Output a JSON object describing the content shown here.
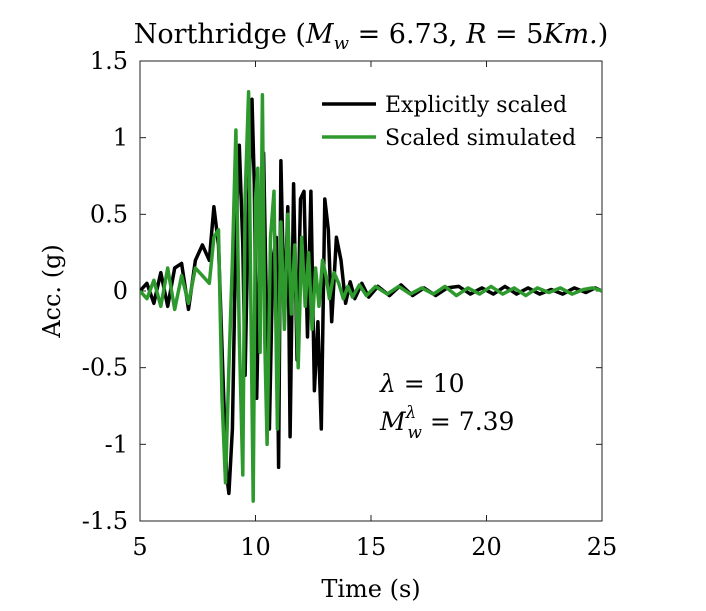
{
  "chart_data": {
    "type": "line",
    "title": "Northridge (M_w = 6.73, R = 5Km.)",
    "title_parts": {
      "prefix": "Northridge (",
      "mw_symbol": "M",
      "mw_sub": "w",
      "mw_value": " = 6.73, ",
      "r_symbol": "R",
      "r_value": " = 5",
      "km": "Km.",
      "suffix": ")"
    },
    "xlabel": "Time (s)",
    "ylabel": "Acc. (g)",
    "xlim": [
      5,
      25
    ],
    "ylim": [
      -1.5,
      1.5
    ],
    "xticks": [
      5,
      10,
      15,
      20,
      25
    ],
    "yticks": [
      1.5,
      1,
      0.5,
      0,
      -0.5,
      -1,
      -1.5
    ],
    "ytick_labels": [
      "1.5",
      "1",
      "0.5",
      "0",
      "-0.5",
      "-1",
      "-1.5"
    ],
    "legend_position": "top-right",
    "annotation": {
      "lambda_line": "λ = 10",
      "lambda_symbol": "λ",
      "lambda_value": " = 10",
      "mw_symbol": "M",
      "mw_sub": "w",
      "mw_sup": "λ",
      "mw_value": " = 7.39"
    },
    "series": [
      {
        "name": "Explicitly scaled",
        "color": "#000000",
        "x": [
          5.0,
          5.3,
          5.6,
          5.9,
          6.2,
          6.5,
          6.8,
          7.1,
          7.4,
          7.7,
          8.0,
          8.2,
          8.4,
          8.6,
          8.75,
          8.85,
          9.0,
          9.15,
          9.3,
          9.45,
          9.55,
          9.7,
          9.85,
          9.95,
          10.05,
          10.2,
          10.35,
          10.5,
          10.6,
          10.75,
          10.9,
          11.0,
          11.1,
          11.25,
          11.4,
          11.5,
          11.65,
          11.8,
          11.95,
          12.1,
          12.25,
          12.4,
          12.55,
          12.7,
          12.85,
          13.0,
          13.15,
          13.3,
          13.5,
          13.7,
          13.9,
          14.1,
          14.3,
          14.6,
          14.9,
          15.3,
          15.8,
          16.3,
          16.8,
          17.3,
          17.8,
          18.3,
          18.8,
          19.3,
          19.8,
          20.3,
          20.8,
          21.3,
          21.8,
          22.3,
          22.8,
          23.3,
          23.8,
          24.3,
          24.7,
          25.0
        ],
        "y": [
          0.0,
          0.05,
          -0.08,
          0.12,
          -0.1,
          0.15,
          0.18,
          -0.12,
          0.2,
          0.3,
          0.2,
          0.55,
          0.3,
          -0.6,
          -1.2,
          -1.32,
          -0.9,
          0.4,
          0.95,
          0.3,
          -0.55,
          0.6,
          1.25,
          0.7,
          -0.7,
          0.45,
          0.9,
          -0.35,
          -0.9,
          0.2,
          0.35,
          -1.15,
          0.85,
          -0.2,
          0.55,
          -0.95,
          0.7,
          -0.45,
          0.6,
          0.65,
          -0.3,
          0.65,
          -0.65,
          -0.2,
          -0.9,
          0.6,
          0.4,
          -0.2,
          0.35,
          0.2,
          -0.08,
          0.06,
          -0.05,
          0.05,
          -0.04,
          0.03,
          -0.03,
          0.04,
          -0.03,
          0.02,
          -0.03,
          0.02,
          0.03,
          -0.02,
          0.02,
          -0.02,
          0.03,
          -0.02,
          0.02,
          -0.02,
          0.01,
          -0.02,
          0.02,
          -0.01,
          0.02,
          0.0
        ]
      },
      {
        "name": "Scaled simulated",
        "color": "#2e9a2e",
        "x": [
          5.0,
          5.3,
          5.6,
          5.9,
          6.2,
          6.5,
          6.8,
          7.1,
          7.4,
          7.7,
          8.0,
          8.2,
          8.4,
          8.55,
          8.7,
          8.85,
          9.0,
          9.15,
          9.3,
          9.45,
          9.55,
          9.7,
          9.8,
          9.9,
          10.0,
          10.1,
          10.2,
          10.3,
          10.4,
          10.5,
          10.65,
          10.8,
          10.95,
          11.1,
          11.25,
          11.4,
          11.55,
          11.7,
          11.85,
          12.0,
          12.15,
          12.3,
          12.45,
          12.6,
          12.75,
          12.9,
          13.05,
          13.2,
          13.4,
          13.6,
          13.8,
          14.0,
          14.2,
          14.5,
          14.8,
          15.2,
          15.7,
          16.2,
          16.7,
          17.2,
          17.7,
          18.2,
          18.7,
          19.2,
          19.7,
          20.2,
          20.7,
          21.2,
          21.7,
          22.2,
          22.7,
          23.2,
          23.7,
          24.2,
          24.6,
          25.0
        ],
        "y": [
          0.0,
          -0.05,
          0.07,
          -0.1,
          0.15,
          -0.12,
          0.1,
          -0.08,
          0.15,
          0.1,
          0.05,
          0.35,
          0.4,
          -0.7,
          -1.25,
          -0.5,
          0.2,
          1.05,
          -0.3,
          -1.2,
          0.6,
          1.3,
          -0.1,
          -1.37,
          0.6,
          0.8,
          -0.4,
          1.28,
          -0.3,
          -1.0,
          0.35,
          0.65,
          -0.9,
          0.45,
          -0.25,
          0.5,
          -0.15,
          0.3,
          -0.5,
          0.35,
          -0.1,
          0.25,
          -0.25,
          0.15,
          -0.1,
          0.2,
          0.1,
          -0.05,
          0.12,
          0.05,
          -0.05,
          0.03,
          -0.04,
          0.04,
          -0.03,
          0.03,
          -0.02,
          0.03,
          -0.02,
          0.02,
          -0.02,
          0.03,
          -0.03,
          0.02,
          -0.02,
          0.03,
          -0.02,
          0.02,
          -0.03,
          0.02,
          -0.01,
          0.02,
          -0.02,
          0.01,
          0.02,
          0.0
        ]
      }
    ]
  }
}
